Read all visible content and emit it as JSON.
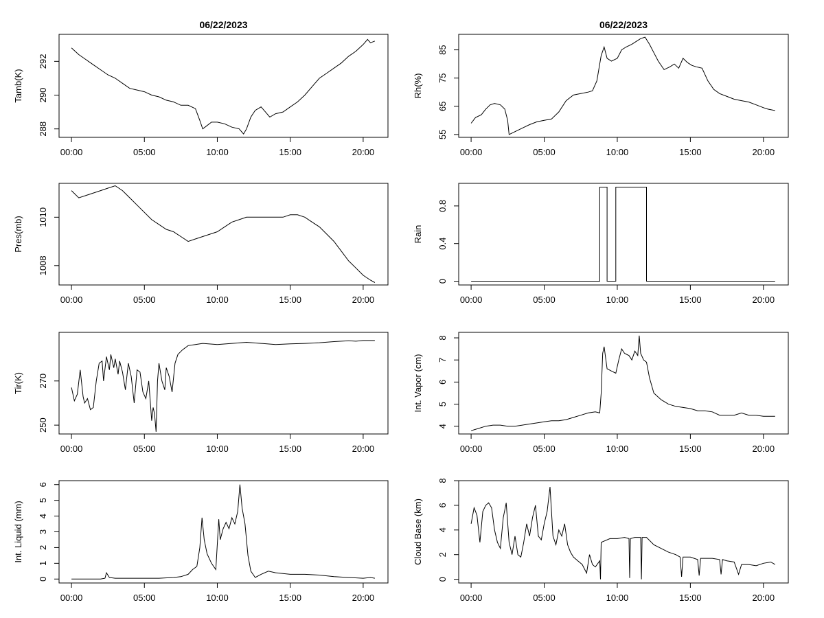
{
  "chart_data": [
    {
      "type": "line",
      "title": "06/22/2023",
      "ylabel": "Tamb(K)",
      "xlabel": "",
      "x_hours": [
        0,
        0.5,
        1,
        1.5,
        2,
        2.5,
        3,
        3.5,
        4,
        4.5,
        5,
        5.5,
        6,
        6.5,
        7,
        7.5,
        8,
        8.5,
        8.8,
        9,
        9.3,
        9.6,
        10,
        10.5,
        11,
        11.5,
        11.8,
        12,
        12.3,
        12.6,
        13,
        13.3,
        13.6,
        14,
        14.5,
        15,
        15.5,
        16,
        16.5,
        17,
        17.5,
        18,
        18.5,
        19,
        19.5,
        20,
        20.3,
        20.5,
        20.8
      ],
      "values": [
        292.8,
        292.4,
        292.1,
        291.8,
        291.5,
        291.2,
        291.0,
        290.7,
        290.4,
        290.3,
        290.2,
        290.0,
        289.9,
        289.7,
        289.6,
        289.4,
        289.4,
        289.2,
        288.5,
        288.0,
        288.2,
        288.4,
        288.4,
        288.3,
        288.1,
        288.0,
        287.7,
        288.0,
        288.7,
        289.1,
        289.3,
        289.0,
        288.7,
        288.9,
        289.0,
        289.3,
        289.6,
        290.0,
        290.5,
        291.0,
        291.3,
        291.6,
        291.9,
        292.3,
        292.6,
        293.0,
        293.3,
        293.1,
        293.2
      ],
      "ylim": [
        287.5,
        293.6
      ],
      "yticks": [
        288,
        290,
        292
      ]
    },
    {
      "type": "line",
      "title": "06/22/2023",
      "ylabel": "Rh(%)",
      "xlabel": "",
      "x_hours": [
        0,
        0.3,
        0.7,
        1,
        1.3,
        1.6,
        2,
        2.3,
        2.5,
        2.6,
        2.8,
        3.2,
        3.6,
        4,
        4.5,
        5,
        5.5,
        6,
        6.5,
        7,
        7.5,
        8,
        8.3,
        8.6,
        8.9,
        9.1,
        9.3,
        9.6,
        10,
        10.3,
        10.6,
        11,
        11.3,
        11.6,
        11.9,
        12.2,
        12.5,
        12.8,
        13.2,
        13.6,
        13.9,
        14.2,
        14.5,
        14.8,
        15.1,
        15.4,
        15.8,
        16.2,
        16.6,
        17,
        17.5,
        18,
        18.5,
        19,
        19.5,
        20,
        20.3,
        20.8
      ],
      "values": [
        59,
        61,
        62,
        64,
        65.5,
        66,
        65.5,
        64,
        60,
        55,
        55.5,
        56.5,
        57.5,
        58.5,
        59.5,
        60,
        60.5,
        63,
        67,
        69,
        69.5,
        70,
        70.5,
        74,
        83,
        86,
        82,
        81,
        82,
        85,
        86,
        87,
        88,
        89,
        89.5,
        87,
        84,
        81,
        78,
        79,
        80,
        78.5,
        82,
        80.5,
        79.5,
        79,
        78.5,
        74,
        71,
        69.5,
        68.5,
        67.5,
        67,
        66.5,
        65.5,
        64.5,
        64,
        63.5
      ],
      "ylim": [
        54,
        90.5
      ],
      "yticks": [
        55,
        65,
        75,
        85
      ]
    },
    {
      "type": "line",
      "ylabel": "Pres(mb)",
      "xlabel": "",
      "x_hours": [
        0,
        0.5,
        1,
        1.5,
        2,
        2.5,
        3,
        3.5,
        4,
        4.5,
        5,
        5.5,
        6,
        6.5,
        7,
        7.5,
        8,
        8.5,
        9,
        9.5,
        10,
        10.5,
        11,
        11.5,
        12,
        12.5,
        13,
        13.5,
        14,
        14.5,
        15,
        15.5,
        16,
        16.5,
        17,
        17.5,
        18,
        18.5,
        19,
        19.5,
        20,
        20.5,
        20.8
      ],
      "values": [
        1011.1,
        1010.8,
        1010.9,
        1011.0,
        1011.1,
        1011.2,
        1011.3,
        1011.1,
        1010.8,
        1010.5,
        1010.2,
        1009.9,
        1009.7,
        1009.5,
        1009.4,
        1009.2,
        1009.0,
        1009.1,
        1009.2,
        1009.3,
        1009.4,
        1009.6,
        1009.8,
        1009.9,
        1010.0,
        1010.0,
        1010.0,
        1010.0,
        1010.0,
        1010.0,
        1010.1,
        1010.1,
        1010.0,
        1009.8,
        1009.6,
        1009.3,
        1009.0,
        1008.6,
        1008.2,
        1007.9,
        1007.6,
        1007.4,
        1007.3
      ],
      "ylim": [
        1007.2,
        1011.4
      ],
      "yticks": [
        1008,
        1010
      ]
    },
    {
      "type": "line",
      "ylabel": "Rain",
      "xlabel": "",
      "x_hours": [
        0,
        8.8,
        8.8,
        9.3,
        9.3,
        9.9,
        9.9,
        12.0,
        12.0,
        20.8
      ],
      "values": [
        0,
        0,
        1,
        1,
        0,
        0,
        1,
        1,
        0,
        0
      ],
      "ylim": [
        -0.04,
        1.04
      ],
      "yticks": [
        0.0,
        0.4,
        0.8
      ]
    },
    {
      "type": "line",
      "ylabel": "Tir(K)",
      "xlabel": "",
      "x_hours": [
        0,
        0.2,
        0.4,
        0.6,
        0.8,
        0.9,
        1.1,
        1.3,
        1.5,
        1.7,
        1.9,
        2.1,
        2.2,
        2.4,
        2.6,
        2.7,
        2.9,
        3.0,
        3.2,
        3.3,
        3.5,
        3.7,
        3.9,
        4.1,
        4.3,
        4.5,
        4.7,
        4.9,
        5.1,
        5.3,
        5.5,
        5.6,
        5.7,
        5.8,
        5.9,
        6.0,
        6.2,
        6.4,
        6.5,
        6.7,
        6.9,
        7.1,
        7.3,
        7.6,
        8.0,
        8.5,
        9,
        10,
        11,
        12,
        13,
        14,
        15,
        16,
        17,
        18,
        19,
        19.5,
        20,
        20.8
      ],
      "values": [
        267,
        261,
        264,
        275,
        263,
        260,
        262,
        257,
        258,
        270,
        278,
        279,
        270,
        281,
        275,
        282,
        276,
        280,
        273,
        279,
        274,
        266,
        278,
        272,
        260,
        275,
        274,
        265,
        262,
        270,
        252,
        258,
        255,
        247,
        270,
        278,
        270,
        266,
        276,
        272,
        265,
        278,
        282,
        284,
        286,
        286.5,
        287,
        286.5,
        287,
        287.5,
        287,
        286.5,
        286.8,
        287,
        287.3,
        287.8,
        288.2,
        288.0,
        288.3,
        288.3
      ],
      "ylim": [
        246,
        292
      ],
      "yticks": [
        250,
        270
      ]
    },
    {
      "type": "line",
      "ylabel": "Int. Vapor (cm)",
      "xlabel": "",
      "x_hours": [
        0,
        0.5,
        1,
        1.5,
        2,
        2.5,
        3,
        3.5,
        4,
        4.5,
        5,
        5.5,
        6,
        6.5,
        7,
        7.5,
        8,
        8.5,
        8.8,
        8.9,
        9.0,
        9.1,
        9.3,
        9.6,
        9.9,
        10.1,
        10.3,
        10.5,
        10.8,
        11.0,
        11.2,
        11.4,
        11.5,
        11.6,
        11.8,
        12.0,
        12.2,
        12.5,
        13,
        13.5,
        14,
        14.5,
        15,
        15.5,
        16,
        16.5,
        17,
        17.5,
        18,
        18.5,
        19,
        19.5,
        20,
        20.5,
        20.8
      ],
      "values": [
        3.8,
        3.9,
        4.0,
        4.05,
        4.05,
        4.0,
        4.0,
        4.05,
        4.1,
        4.15,
        4.2,
        4.25,
        4.25,
        4.3,
        4.4,
        4.5,
        4.6,
        4.65,
        4.6,
        5.5,
        7.3,
        7.6,
        6.6,
        6.5,
        6.4,
        7.0,
        7.5,
        7.3,
        7.2,
        7.0,
        7.4,
        7.2,
        8.1,
        7.3,
        7.0,
        6.9,
        6.2,
        5.5,
        5.2,
        5.0,
        4.9,
        4.85,
        4.8,
        4.7,
        4.7,
        4.65,
        4.5,
        4.5,
        4.5,
        4.6,
        4.5,
        4.5,
        4.45,
        4.45,
        4.45
      ],
      "ylim": [
        3.65,
        8.25
      ],
      "yticks": [
        4,
        5,
        6,
        7,
        8
      ]
    },
    {
      "type": "line",
      "ylabel": "Int. Liquid (mm)",
      "xlabel": "",
      "x_hours": [
        0,
        1,
        2,
        2.3,
        2.4,
        2.6,
        3,
        4,
        5,
        6,
        7,
        7.5,
        8,
        8.3,
        8.6,
        8.8,
        8.95,
        9.1,
        9.3,
        9.6,
        9.9,
        10.1,
        10.2,
        10.4,
        10.6,
        10.8,
        11.0,
        11.2,
        11.4,
        11.55,
        11.7,
        11.9,
        12.1,
        12.3,
        12.6,
        13,
        13.5,
        14,
        15,
        16,
        17,
        18,
        19,
        20,
        20.5,
        20.8
      ],
      "values": [
        0.0,
        0.0,
        0.0,
        0.05,
        0.4,
        0.1,
        0.05,
        0.05,
        0.05,
        0.05,
        0.1,
        0.15,
        0.3,
        0.6,
        0.8,
        2.0,
        3.9,
        2.5,
        1.6,
        1.0,
        0.6,
        3.8,
        2.5,
        3.2,
        3.6,
        3.2,
        3.9,
        3.5,
        4.3,
        6.0,
        4.5,
        3.5,
        1.5,
        0.5,
        0.1,
        0.3,
        0.5,
        0.4,
        0.3,
        0.3,
        0.25,
        0.15,
        0.1,
        0.05,
        0.1,
        0.05
      ],
      "ylim": [
        -0.25,
        6.25
      ],
      "yticks": [
        0,
        1,
        2,
        3,
        4,
        5,
        6
      ]
    },
    {
      "type": "line",
      "ylabel": "Cloud Base (km)",
      "xlabel": "",
      "x_hours": [
        0,
        0.2,
        0.4,
        0.6,
        0.8,
        1.0,
        1.2,
        1.4,
        1.6,
        1.8,
        2.0,
        2.2,
        2.4,
        2.6,
        2.8,
        3.0,
        3.2,
        3.4,
        3.6,
        3.8,
        4.0,
        4.2,
        4.4,
        4.6,
        4.8,
        5.0,
        5.2,
        5.4,
        5.6,
        5.8,
        6.0,
        6.2,
        6.4,
        6.6,
        6.8,
        7.0,
        7.3,
        7.6,
        7.9,
        8.1,
        8.3,
        8.5,
        8.8,
        8.85,
        8.9,
        9.5,
        10.0,
        10.5,
        10.8,
        10.85,
        10.9,
        11.2,
        11.6,
        11.65,
        11.7,
        12.0,
        12.5,
        13,
        13.5,
        14,
        14.3,
        14.4,
        14.5,
        15,
        15.5,
        15.6,
        15.7,
        16,
        16.5,
        17,
        17.1,
        17.2,
        17.5,
        18,
        18.3,
        18.5,
        19,
        19.5,
        20,
        20.5,
        20.8
      ],
      "values": [
        4.5,
        5.8,
        5.2,
        3.0,
        5.5,
        6.0,
        6.2,
        5.8,
        4.0,
        3.0,
        2.5,
        5.0,
        6.2,
        3.0,
        2.0,
        3.5,
        2.0,
        1.8,
        3.0,
        4.5,
        3.5,
        5.0,
        6.0,
        3.5,
        3.2,
        4.5,
        5.5,
        7.5,
        3.5,
        2.8,
        4.0,
        3.5,
        4.5,
        2.8,
        2.2,
        1.8,
        1.5,
        1.2,
        0.5,
        2.0,
        1.2,
        1.0,
        1.5,
        0.0,
        3.0,
        3.3,
        3.3,
        3.4,
        3.3,
        0.1,
        3.3,
        3.4,
        3.4,
        0.0,
        3.4,
        3.4,
        2.8,
        2.5,
        2.2,
        2.0,
        1.8,
        0.2,
        1.8,
        1.8,
        1.6,
        0.3,
        1.7,
        1.7,
        1.7,
        1.6,
        0.4,
        1.6,
        1.5,
        1.4,
        0.4,
        1.2,
        1.2,
        1.1,
        1.3,
        1.4,
        1.2
      ],
      "ylim": [
        -0.3,
        8.0
      ],
      "yticks": [
        0,
        2,
        4,
        6,
        8
      ]
    }
  ],
  "x_axis": {
    "ticks_hours": [
      0,
      5,
      10,
      15,
      20
    ],
    "tick_labels": [
      "00:00",
      "05:00",
      "10:00",
      "15:00",
      "20:00"
    ],
    "xlim_hours": [
      -0.85,
      21.7
    ]
  }
}
